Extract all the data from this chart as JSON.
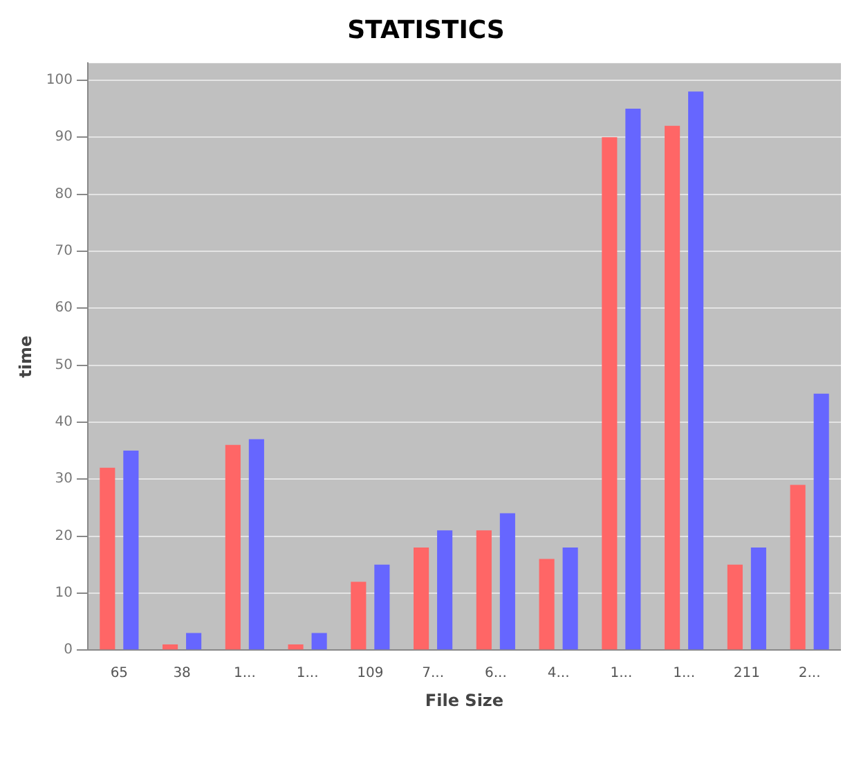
{
  "chart_data": {
    "type": "bar",
    "title": "STATISTICS",
    "xlabel": "File Size",
    "ylabel": "time",
    "categories": [
      "65",
      "38",
      "1...",
      "1...",
      "109",
      "7...",
      "6...",
      "4...",
      "1...",
      "1...",
      "211",
      "2..."
    ],
    "series": [
      {
        "color": "#ff6666",
        "values": [
          32,
          1,
          36,
          1,
          12,
          18,
          21,
          16,
          90,
          92,
          15,
          29
        ]
      },
      {
        "color": "#6666ff",
        "values": [
          35,
          3,
          37,
          3,
          15,
          21,
          24,
          18,
          95,
          98,
          18,
          45
        ]
      }
    ],
    "ylim": [
      0,
      103
    ],
    "yticks": [
      0,
      10,
      20,
      30,
      40,
      50,
      60,
      70,
      80,
      90,
      100
    ],
    "grid": "y",
    "legend": false
  }
}
